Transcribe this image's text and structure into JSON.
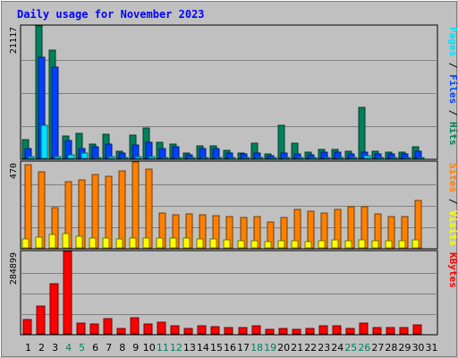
{
  "chart_data": {
    "type": "bar",
    "title": "Daily usage for November 2023",
    "x": [
      "1",
      "2",
      "3",
      "4",
      "5",
      "6",
      "7",
      "8",
      "9",
      "10",
      "11",
      "12",
      "13",
      "14",
      "15",
      "16",
      "17",
      "18",
      "19",
      "20",
      "21",
      "22",
      "23",
      "24",
      "25",
      "26",
      "27",
      "28",
      "29",
      "30",
      "31"
    ],
    "weekend_days": [
      "4",
      "5",
      "11",
      "12",
      "18",
      "19",
      "25",
      "26"
    ],
    "colors": {
      "background": "#c0c0c0",
      "hits": "#00805c",
      "files": "#0040ff",
      "pages": "#00e0ff",
      "visits": "#ffff00",
      "sites": "#ff8000",
      "kbytes": "#ff0000",
      "title": "#0000ff",
      "weekend_label": "#00805c",
      "weekday_label": "#000000"
    },
    "panels": [
      {
        "id": "hits_files_pages",
        "max_label": "21117",
        "ymax": 21117,
        "right_labels": [
          {
            "text": "Pages",
            "color": "#00e0ff"
          },
          {
            "text": " / ",
            "color": "#000000"
          },
          {
            "text": "Files",
            "color": "#0040ff"
          },
          {
            "text": " / ",
            "color": "#000000"
          },
          {
            "text": "Hits",
            "color": "#00805c"
          }
        ],
        "series": [
          {
            "name": "Hits",
            "values": [
              3000,
              21117,
              17200,
              3500,
              4000,
              2300,
              3800,
              1200,
              3700,
              4900,
              2600,
              2300,
              800,
              2000,
              2000,
              1300,
              900,
              2400,
              700,
              5300,
              2400,
              1000,
              1400,
              1400,
              1100,
              8200,
              1200,
              1000,
              1000,
              1800,
              0
            ]
          },
          {
            "name": "Files",
            "values": [
              1600,
              16100,
              14500,
              2900,
              1600,
              1900,
              2300,
              900,
              2200,
              2600,
              1600,
              1800,
              600,
              1500,
              1500,
              900,
              700,
              900,
              400,
              900,
              700,
              600,
              1000,
              1000,
              700,
              1000,
              700,
              700,
              700,
              1100,
              0
            ]
          },
          {
            "name": "Pages",
            "values": [
              300,
              5300,
              300,
              500,
              900,
              200,
              300,
              100,
              300,
              300,
              200,
              200,
              100,
              200,
              200,
              200,
              100,
              200,
              100,
              200,
              200,
              100,
              200,
              200,
              200,
              400,
              200,
              200,
              200,
              200,
              0
            ]
          }
        ]
      },
      {
        "id": "visits_sites",
        "max_label": "470",
        "ymax": 470,
        "right_labels": [
          {
            "text": "Sites",
            "color": "#ff8000"
          },
          {
            "text": " / ",
            "color": "#000000"
          },
          {
            "text": "Visits",
            "color": "#ffff00"
          }
        ],
        "series": [
          {
            "name": "Sites",
            "values": [
              455,
              415,
              220,
              360,
              370,
              400,
              390,
              420,
              470,
              430,
              190,
              180,
              185,
              180,
              175,
              170,
              165,
              170,
              140,
              165,
              210,
              200,
              190,
              210,
              225,
              225,
              185,
              170,
              170,
              260,
              0
            ]
          },
          {
            "name": "Visits",
            "values": [
              50,
              60,
              75,
              80,
              65,
              55,
              55,
              50,
              55,
              55,
              55,
              55,
              55,
              50,
              50,
              45,
              40,
              40,
              35,
              40,
              40,
              35,
              40,
              45,
              40,
              45,
              40,
              40,
              40,
              45,
              0
            ]
          }
        ]
      },
      {
        "id": "kbytes",
        "max_label": "284899",
        "ymax": 284899,
        "right_labels": [
          {
            "text": "KBytes",
            "color": "#ff0000"
          }
        ],
        "series": [
          {
            "name": "KBytes",
            "values": [
              50000,
              97000,
              172000,
              284899,
              36000,
              34000,
              54000,
              18000,
              56000,
              35000,
              40000,
              28000,
              18000,
              27000,
              24000,
              22000,
              21000,
              27000,
              15000,
              18000,
              17000,
              18000,
              28000,
              27000,
              18000,
              36000,
              23000,
              23000,
              21000,
              30000,
              0
            ]
          }
        ]
      }
    ]
  }
}
